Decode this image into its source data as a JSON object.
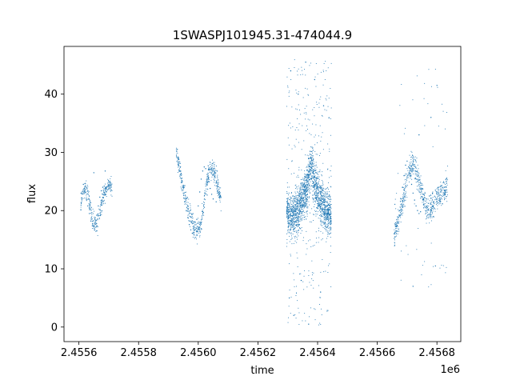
{
  "chart_data": {
    "type": "scatter",
    "title": "1SWASPJ101945.31-474044.9",
    "xlabel": "time",
    "ylabel": "flux",
    "x_offset_label": "1e6",
    "xlim": [
      2455550,
      2456880
    ],
    "ylim": [
      -2.5,
      48.2
    ],
    "x_ticks": [
      2455600,
      2455800,
      2456000,
      2456200,
      2456400,
      2456600,
      2456800
    ],
    "x_tick_labels": [
      "2.4556",
      "2.4558",
      "2.4560",
      "2.4562",
      "2.4564",
      "2.4566",
      "2.4568"
    ],
    "y_ticks": [
      0,
      10,
      20,
      30,
      40
    ],
    "y_tick_labels": [
      "0",
      "10",
      "20",
      "30",
      "40"
    ],
    "grid": false,
    "marker_color": "#1f77b4",
    "series": [
      {
        "values_note_free": true,
        "points": [
          [
            2455615,
            24.5
          ],
          [
            2455620,
            23.2
          ],
          [
            2455625,
            22.0
          ],
          [
            2455630,
            20.8
          ],
          [
            2455635,
            19.5
          ],
          [
            2455640,
            18.2
          ],
          [
            2455645,
            17.4
          ],
          [
            2455650,
            17.2
          ],
          [
            2455655,
            18.0
          ],
          [
            2455660,
            19.2
          ],
          [
            2455665,
            20.8
          ],
          [
            2455670,
            22.3
          ],
          [
            2455675,
            23.4
          ],
          [
            2455680,
            24.0
          ],
          [
            2455685,
            24.2
          ],
          [
            2455690,
            23.8
          ],
          [
            2455695,
            24.1
          ],
          [
            2455700,
            24.4
          ],
          [
            2455650,
            26.5
          ],
          [
            2455688,
            26.8
          ],
          [
            2455930,
            30.5
          ],
          [
            2455935,
            28.8
          ],
          [
            2455940,
            26.8
          ],
          [
            2455945,
            24.8
          ],
          [
            2455950,
            23.0
          ],
          [
            2455955,
            21.5
          ],
          [
            2455960,
            20.0
          ],
          [
            2455965,
            18.8
          ],
          [
            2455970,
            17.6
          ],
          [
            2455975,
            16.7
          ],
          [
            2455980,
            16.1
          ],
          [
            2455985,
            16.0
          ],
          [
            2455990,
            16.8
          ],
          [
            2455995,
            18.5
          ],
          [
            2456000,
            20.8
          ],
          [
            2456005,
            23.2
          ],
          [
            2456010,
            25.4
          ],
          [
            2456015,
            26.8
          ],
          [
            2456020,
            27.5
          ],
          [
            2456025,
            27.2
          ],
          [
            2456030,
            26.2
          ],
          [
            2456035,
            25.0
          ],
          [
            2456040,
            23.8
          ],
          [
            2456045,
            22.8
          ],
          [
            2456050,
            22.0
          ],
          [
            2456060,
            21.5
          ],
          [
            2456300,
            20.5
          ],
          [
            2456305,
            19.8
          ],
          [
            2456310,
            19.2
          ],
          [
            2456315,
            19.0
          ],
          [
            2456320,
            19.3
          ],
          [
            2456325,
            19.8
          ],
          [
            2456330,
            20.2
          ],
          [
            2456335,
            20.8
          ],
          [
            2456340,
            21.5
          ],
          [
            2456345,
            22.2
          ],
          [
            2456350,
            23.0
          ],
          [
            2456355,
            24.0
          ],
          [
            2456360,
            25.2
          ],
          [
            2456365,
            27.0
          ],
          [
            2456370,
            29.0
          ],
          [
            2456375,
            27.5
          ],
          [
            2456380,
            25.5
          ],
          [
            2456385,
            24.0
          ],
          [
            2456390,
            23.0
          ],
          [
            2456395,
            22.2
          ],
          [
            2456400,
            21.6
          ],
          [
            2456405,
            21.0
          ],
          [
            2456410,
            20.6
          ],
          [
            2456415,
            20.2
          ],
          [
            2456420,
            19.8
          ],
          [
            2456425,
            19.5
          ],
          [
            2456430,
            19.2
          ],
          [
            2456435,
            19.0
          ],
          [
            2456310,
            44.0
          ],
          [
            2456335,
            40.0
          ],
          [
            2456360,
            45.5
          ],
          [
            2456390,
            42.5
          ],
          [
            2456420,
            38.0
          ],
          [
            2456305,
            5.0
          ],
          [
            2456320,
            2.0
          ],
          [
            2456345,
            8.0
          ],
          [
            2456370,
            0.5
          ],
          [
            2456410,
            6.0
          ],
          [
            2456660,
            15.5
          ],
          [
            2456665,
            16.5
          ],
          [
            2456670,
            18.0
          ],
          [
            2456675,
            20.0
          ],
          [
            2456680,
            22.0
          ],
          [
            2456685,
            24.0
          ],
          [
            2456690,
            26.0
          ],
          [
            2456695,
            27.8
          ],
          [
            2456700,
            28.5
          ],
          [
            2456705,
            27.5
          ],
          [
            2456710,
            26.0
          ],
          [
            2456715,
            24.5
          ],
          [
            2456720,
            23.0
          ],
          [
            2456725,
            21.8
          ],
          [
            2456730,
            20.8
          ],
          [
            2456735,
            20.0
          ],
          [
            2456740,
            19.5
          ],
          [
            2456745,
            19.8
          ],
          [
            2456755,
            21.0
          ],
          [
            2456765,
            22.0
          ],
          [
            2456775,
            22.5
          ],
          [
            2456785,
            23.0
          ],
          [
            2456795,
            23.5
          ],
          [
            2456805,
            24.0
          ],
          [
            2456815,
            24.2
          ],
          [
            2456825,
            24.0
          ],
          [
            2456780,
            36.0
          ],
          [
            2456800,
            41.5
          ],
          [
            2456740,
            33.0
          ],
          [
            2456720,
            7.0
          ],
          [
            2456795,
            10.5
          ]
        ],
        "clusters": [
          {
            "x": [
              2455605,
              2455710
            ],
            "center": [
              21.5,
              24.0,
              22.5,
              18.5,
              17.5,
              20.0,
              23.0,
              24.5,
              24.0
            ],
            "spread": 1.4,
            "count": 320
          },
          {
            "x": [
              2455925,
              2456075
            ],
            "center": [
              30.0,
              26.5,
              23.0,
              20.5,
              18.0,
              16.2,
              17.5,
              22.0,
              26.5,
              27.5,
              25.0,
              22.0
            ],
            "spread": 1.5,
            "count": 520
          },
          {
            "x": [
              2456295,
              2456445
            ],
            "center": [
              20.0,
              19.5,
              19.5,
              20.5,
              22.0,
              24.0,
              28.0,
              24.5,
              22.5,
              21.0,
              20.0,
              19.5
            ],
            "spread": 3.2,
            "count": 1700,
            "outlier_count": 320,
            "outlier_range": [
              0.3,
              46.0
            ]
          },
          {
            "x": [
              2456655,
              2456835
            ],
            "center": [
              15.5,
              18.5,
              22.5,
              26.5,
              28.5,
              25.5,
              22.0,
              20.0,
              21.0,
              22.5,
              23.5,
              24.0
            ],
            "spread": 1.8,
            "count": 650,
            "outlier_count": 55,
            "outlier_range": [
              5.0,
              45.0
            ]
          }
        ]
      }
    ]
  }
}
